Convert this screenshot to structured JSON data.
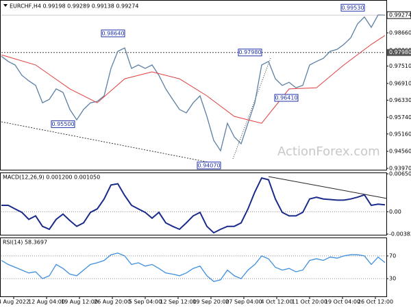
{
  "chart_data": [
    {
      "type": "line",
      "title": "EURCHF,H4 0.99198 0.99289 0.99138 0.99274",
      "watermark": "ActionForex.com",
      "xlim": [
        0,
        56
      ],
      "ylim": [
        0.93923,
        0.99702
      ],
      "yticks": [
        {
          "value": 0.9866,
          "label": "0.98660"
        },
        {
          "value": 0.9806,
          "label": "0.98060"
        },
        {
          "value": 0.9751,
          "label": "0.97510"
        },
        {
          "value": 0.9691,
          "label": "0.96910"
        },
        {
          "value": 0.9633,
          "label": "0.96330"
        },
        {
          "value": 0.9574,
          "label": "0.95740"
        },
        {
          "value": 0.9516,
          "label": "0.95160"
        },
        {
          "value": 0.9456,
          "label": "0.94560"
        },
        {
          "value": 0.9397,
          "label": "0.93970"
        }
      ],
      "level": {
        "value": 0.9798,
        "label": "0.97980"
      },
      "last": {
        "value": 0.99274,
        "label": "0.99274"
      },
      "annotations": [
        {
          "label": "0.99530",
          "x": 51.3,
          "value": 0.9953
        },
        {
          "label": "0.98640",
          "x": 16.3,
          "value": 0.9864
        },
        {
          "label": "0.97980",
          "x": 36.3,
          "value": 0.9798
        },
        {
          "label": "0.96410",
          "x": 41.6,
          "value": 0.9641
        },
        {
          "label": "0.95500",
          "x": 9,
          "value": 0.955
        },
        {
          "label": "0.94070",
          "x": 30.3,
          "value": 0.9407
        }
      ],
      "series": [
        {
          "name": "EURCHF",
          "color": "#5b7fa3",
          "x": [
            0,
            1,
            2,
            3,
            4,
            5,
            6,
            7,
            8,
            9,
            10,
            11,
            12,
            13,
            14,
            15,
            16,
            17,
            18,
            19,
            20,
            21,
            22,
            23,
            24,
            25,
            26,
            27,
            28,
            29,
            30,
            31,
            32,
            33,
            34,
            35,
            36,
            37,
            38,
            39,
            40,
            41,
            42,
            43,
            44,
            45,
            46,
            47,
            48,
            49,
            50,
            51,
            52,
            53,
            54,
            55,
            56
          ],
          "values": [
            0.9785,
            0.9767,
            0.9755,
            0.9719,
            0.97,
            0.9684,
            0.9624,
            0.9636,
            0.9672,
            0.966,
            0.9601,
            0.9565,
            0.9601,
            0.9624,
            0.9629,
            0.9648,
            0.9743,
            0.9802,
            0.9814,
            0.9743,
            0.9755,
            0.9743,
            0.9755,
            0.9719,
            0.9672,
            0.9636,
            0.9601,
            0.9589,
            0.9624,
            0.9648,
            0.9577,
            0.9494,
            0.9458,
            0.9553,
            0.9506,
            0.9482,
            0.9553,
            0.9624,
            0.9755,
            0.9767,
            0.9707,
            0.9684,
            0.9695,
            0.9676,
            0.9684,
            0.9755,
            0.9767,
            0.9778,
            0.9802,
            0.9809,
            0.9826,
            0.9849,
            0.9897,
            0.9921,
            0.9885,
            0.9928,
            0.99274
          ]
        },
        {
          "name": "MA",
          "color": "#e03c3c",
          "x": [
            0,
            5,
            10,
            14,
            18,
            22,
            26,
            30,
            34,
            38,
            42,
            46,
            50,
            54,
            56
          ],
          "values": [
            0.979,
            0.9755,
            0.9672,
            0.9624,
            0.9707,
            0.9731,
            0.9707,
            0.9648,
            0.9577,
            0.9553,
            0.9672,
            0.9676,
            0.9755,
            0.9826,
            0.9857
          ]
        }
      ]
    },
    {
      "type": "line",
      "title": "MACD(12,26,9) 0.001200 0.001050",
      "xlim": [
        0,
        56
      ],
      "ylim": [
        -0.003828,
        0.006509
      ],
      "yticks": [
        0.006509,
        {
          "value": 0,
          "label": "0.00"
        },
        -0.003828
      ],
      "series": [
        {
          "name": "MACD",
          "color": "#1a2a8a",
          "x": [
            0,
            1,
            2,
            3,
            4,
            5,
            6,
            7,
            8,
            9,
            10,
            11,
            12,
            13,
            14,
            15,
            16,
            17,
            18,
            19,
            20,
            21,
            22,
            23,
            24,
            25,
            26,
            27,
            28,
            29,
            30,
            31,
            32,
            33,
            34,
            35,
            36,
            37,
            38,
            39,
            40,
            41,
            42,
            43,
            44,
            45,
            46,
            47,
            48,
            49,
            50,
            51,
            52,
            53,
            54,
            55,
            56
          ],
          "values": [
            0.0011,
            0.0011,
            0.0005,
            -0.0001,
            -0.0013,
            -0.0007,
            -0.0025,
            -0.003,
            -0.0013,
            -0.0004,
            -0.0015,
            -0.0025,
            -0.0019,
            -0.0001,
            0.0005,
            0.0022,
            0.0046,
            0.0048,
            0.0028,
            0.0011,
            0.0005,
            -0.0001,
            -0.0011,
            -0.0001,
            -0.0019,
            -0.0025,
            -0.003,
            -0.0019,
            -0.0007,
            -0.0001,
            -0.0025,
            -0.0036,
            -0.003,
            -0.0025,
            -0.0025,
            -0.0019,
            0.0005,
            0.0034,
            0.0058,
            0.0055,
            0.0022,
            -0.0001,
            -0.0007,
            -0.0007,
            -0.0001,
            0.0022,
            0.0025,
            0.0022,
            0.0021,
            0.002,
            0.002,
            0.0022,
            0.0025,
            0.0029,
            0.0011,
            0.0013,
            0.0012
          ]
        }
      ]
    },
    {
      "type": "line",
      "title": "RSI(14) 58.3697",
      "xlim": [
        0,
        56
      ],
      "ylim": [
        0,
        100
      ],
      "yticks": [
        70,
        30
      ],
      "xticks": [
        {
          "value": 1.8,
          "label": "4 Aug 2022"
        },
        {
          "value": 6.6,
          "label": "12 Aug 04:00"
        },
        {
          "value": 11.4,
          "label": "19 Aug 12:00"
        },
        {
          "value": 16.2,
          "label": "26 Aug 20:00"
        },
        {
          "value": 21,
          "label": "5 Sep 04:00"
        },
        {
          "value": 25.8,
          "label": "12 Sep 12:00"
        },
        {
          "value": 30.6,
          "label": "19 Sep 20:00"
        },
        {
          "value": 35.4,
          "label": "27 Sep 04:00"
        },
        {
          "value": 40.2,
          "label": "4 Oct 12:00"
        },
        {
          "value": 45,
          "label": "11 Oct 20:00"
        },
        {
          "value": 49.8,
          "label": "19 Oct 04:00"
        },
        {
          "value": 54.6,
          "label": "26 Oct 12:00"
        }
      ],
      "series": [
        {
          "name": "RSI",
          "color": "#3d8fe0",
          "x": [
            0,
            1,
            2,
            3,
            4,
            5,
            6,
            7,
            8,
            9,
            10,
            11,
            12,
            13,
            14,
            15,
            16,
            17,
            18,
            19,
            20,
            21,
            22,
            23,
            24,
            25,
            26,
            27,
            28,
            29,
            30,
            31,
            32,
            33,
            34,
            35,
            36,
            37,
            38,
            39,
            40,
            41,
            42,
            43,
            44,
            45,
            46,
            47,
            48,
            49,
            50,
            51,
            52,
            53,
            54,
            55,
            56
          ],
          "values": [
            62,
            55,
            50,
            45,
            40,
            42,
            30,
            35,
            55,
            48,
            38,
            35,
            45,
            55,
            58,
            62,
            72,
            75,
            70,
            55,
            58,
            52,
            55,
            48,
            40,
            38,
            35,
            40,
            48,
            52,
            35,
            25,
            28,
            45,
            35,
            30,
            45,
            55,
            70,
            65,
            50,
            45,
            48,
            42,
            45,
            62,
            65,
            62,
            68,
            66,
            70,
            72,
            72,
            70,
            55,
            68,
            58.3697
          ]
        }
      ]
    }
  ]
}
